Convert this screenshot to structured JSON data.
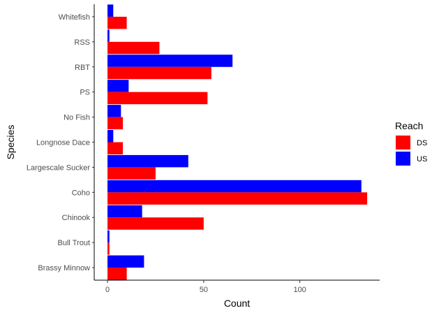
{
  "chart_data": {
    "type": "bar",
    "orientation": "horizontal",
    "xlabel": "Count",
    "ylabel": "Species",
    "categories": [
      "Whitefish",
      "RSS",
      "RBT",
      "PS",
      "No Fish",
      "Longnose Dace",
      "Largescale Sucker",
      "Coho",
      "Chinook",
      "Bull Trout",
      "Brassy Minnow"
    ],
    "series": [
      {
        "name": "DS",
        "color": "#ff0000",
        "values": [
          10,
          27,
          54,
          52,
          8,
          8,
          25,
          135,
          50,
          1,
          10
        ]
      },
      {
        "name": "US",
        "color": "#0000ff",
        "values": [
          3,
          1,
          65,
          11,
          7,
          3,
          42,
          132,
          18,
          1,
          19
        ]
      }
    ],
    "xlim": [
      -6.9,
      141.5
    ],
    "xticks": [
      0,
      50,
      100
    ],
    "grid": false,
    "legend": {
      "title": "Reach",
      "position": "right",
      "entries": [
        "DS",
        "US"
      ]
    }
  }
}
